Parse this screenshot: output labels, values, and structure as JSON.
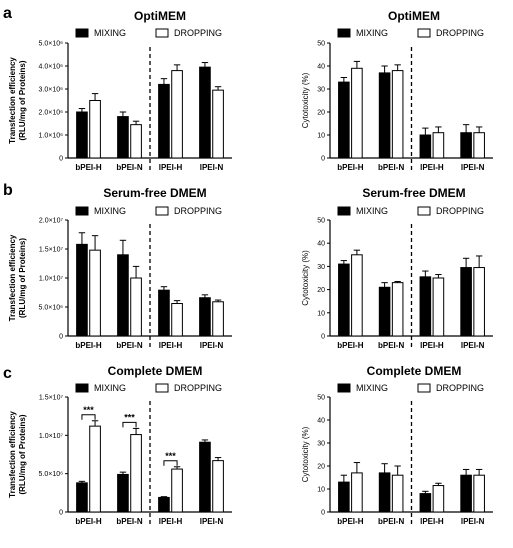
{
  "panel_letters": [
    "a",
    "b",
    "c"
  ],
  "chart_data": [
    {
      "type": "bar",
      "panel": "a",
      "title": "OptiMEM",
      "ylabel": "Transfection efficiency\n(RLU/mg of Proteins)",
      "categories": [
        "bPEI-H",
        "bPEI-N",
        "lPEI-H",
        "lPEI-N"
      ],
      "ylim": [
        0,
        5000000
      ],
      "yticks": [
        0,
        1000000,
        2000000,
        3000000,
        4000000,
        5000000
      ],
      "ytick_labels": [
        "0",
        "1.0×10⁶",
        "2.0×10⁶",
        "3.0×10⁶",
        "4.0×10⁶",
        "5.0×10⁶"
      ],
      "series": [
        {
          "name": "MIXING",
          "values": [
            2000000,
            1800000,
            3200000,
            3950000
          ],
          "errors": [
            150000,
            200000,
            250000,
            200000
          ]
        },
        {
          "name": "DROPPING",
          "values": [
            2500000,
            1450000,
            3800000,
            2950000
          ],
          "errors": [
            300000,
            150000,
            250000,
            150000
          ]
        }
      ],
      "legend": "top",
      "divider_after": 2,
      "significance": []
    },
    {
      "type": "bar",
      "panel": "a",
      "title": "OptiMEM",
      "ylabel": "Cytotoxicity (%)",
      "categories": [
        "bPEI-H",
        "bPEI-N",
        "lPEI-H",
        "lPEI-N"
      ],
      "ylim": [
        0,
        50
      ],
      "yticks": [
        0,
        10,
        20,
        30,
        40,
        50
      ],
      "ytick_labels": [
        "0",
        "10",
        "20",
        "30",
        "40",
        "50"
      ],
      "series": [
        {
          "name": "MIXING",
          "values": [
            33,
            37,
            10,
            11
          ],
          "errors": [
            2,
            3,
            3,
            3.5
          ]
        },
        {
          "name": "DROPPING",
          "values": [
            39,
            38,
            11,
            11
          ],
          "errors": [
            3,
            2.5,
            2.5,
            2.5
          ]
        }
      ],
      "legend": "top",
      "divider_after": 2,
      "significance": []
    },
    {
      "type": "bar",
      "panel": "b",
      "title": "Serum-free DMEM",
      "ylabel": "Transfection efficiency\n(RLU/mg of Proteins)",
      "categories": [
        "bPEI-H",
        "bPEI-N",
        "lPEI-H",
        "lPEI-N"
      ],
      "ylim": [
        0,
        20000000
      ],
      "yticks": [
        0,
        5000000,
        10000000,
        15000000,
        20000000
      ],
      "ytick_labels": [
        "0",
        "5.0×10⁶",
        "1.0×10⁷",
        "1.5×10⁷",
        "2.0×10⁷"
      ],
      "series": [
        {
          "name": "MIXING",
          "values": [
            15800000,
            14000000,
            7900000,
            6600000
          ],
          "errors": [
            2000000,
            2500000,
            600000,
            500000
          ]
        },
        {
          "name": "DROPPING",
          "values": [
            14800000,
            10000000,
            5600000,
            5900000
          ],
          "errors": [
            2500000,
            2000000,
            500000,
            300000
          ]
        }
      ],
      "legend": "top",
      "divider_after": 2,
      "significance": []
    },
    {
      "type": "bar",
      "panel": "b",
      "title": "Serum-free DMEM",
      "ylabel": "Cytotoxicity (%)",
      "categories": [
        "bPEI-H",
        "bPEI-N",
        "lPEI-H",
        "lPEI-N"
      ],
      "ylim": [
        0,
        50
      ],
      "yticks": [
        0,
        10,
        20,
        30,
        40,
        50
      ],
      "ytick_labels": [
        "0",
        "10",
        "20",
        "30",
        "40",
        "50"
      ],
      "series": [
        {
          "name": "MIXING",
          "values": [
            31,
            21,
            25.5,
            29.5
          ],
          "errors": [
            1.5,
            2,
            2.5,
            4
          ]
        },
        {
          "name": "DROPPING",
          "values": [
            35,
            23,
            25,
            29.5
          ],
          "errors": [
            2,
            0.5,
            1.5,
            5
          ]
        }
      ],
      "legend": "top",
      "divider_after": 2,
      "significance": []
    },
    {
      "type": "bar",
      "panel": "c",
      "title": "Complete DMEM",
      "ylabel": "Transfection efficiency\n(RLU/mg of Proteins)",
      "categories": [
        "bPEI-H",
        "bPEI-N",
        "lPEI-H",
        "lPEI-N"
      ],
      "ylim": [
        0,
        15000000
      ],
      "yticks": [
        0,
        5000000,
        10000000,
        15000000
      ],
      "ytick_labels": [
        "0",
        "5.0×10⁶",
        "1.0×10⁷",
        "1.5×10⁷"
      ],
      "series": [
        {
          "name": "MIXING",
          "values": [
            3800000,
            4900000,
            1900000,
            9100000
          ],
          "errors": [
            200000,
            300000,
            100000,
            300000
          ]
        },
        {
          "name": "DROPPING",
          "values": [
            11200000,
            10100000,
            5600000,
            6700000
          ],
          "errors": [
            700000,
            800000,
            300000,
            400000
          ]
        }
      ],
      "legend": "top",
      "divider_after": 2,
      "significance": [
        {
          "category": "bPEI-H",
          "label": "***"
        },
        {
          "category": "bPEI-N",
          "label": "***"
        },
        {
          "category": "lPEI-H",
          "label": "***"
        }
      ]
    },
    {
      "type": "bar",
      "panel": "c",
      "title": "Complete DMEM",
      "ylabel": "Cytotoxicity (%)",
      "categories": [
        "bPEI-H",
        "bPEI-N",
        "lPEI-H",
        "lPEI-N"
      ],
      "ylim": [
        0,
        50
      ],
      "yticks": [
        0,
        10,
        20,
        30,
        40,
        50
      ],
      "ytick_labels": [
        "0",
        "10",
        "20",
        "30",
        "40",
        "50"
      ],
      "series": [
        {
          "name": "MIXING",
          "values": [
            13,
            17,
            8,
            16
          ],
          "errors": [
            3,
            4,
            1,
            2.5
          ]
        },
        {
          "name": "DROPPING",
          "values": [
            17,
            16,
            11.5,
            16
          ],
          "errors": [
            4.5,
            4,
            1,
            2.5
          ]
        }
      ],
      "legend": "top",
      "divider_after": 2,
      "significance": []
    }
  ],
  "colors": {
    "mixing": "#000000",
    "dropping": "#ffffff",
    "axis": "#000000"
  }
}
